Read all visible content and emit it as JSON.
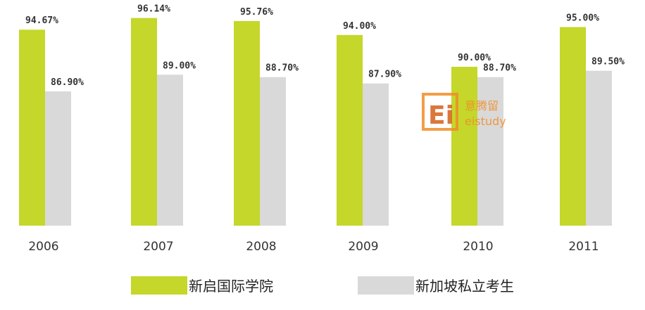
{
  "chart_data": {
    "type": "bar",
    "categories": [
      "2006",
      "2007",
      "2008",
      "2009",
      "2010",
      "2011"
    ],
    "series": [
      {
        "name": "新启国际学院",
        "values": [
          94.67,
          96.14,
          95.76,
          94.0,
          90.0,
          95.0
        ],
        "labels": [
          "94.67%",
          "96.14%",
          "95.76%",
          "94.00%",
          "90.00%",
          "95.00%"
        ],
        "color": "#c4d72a"
      },
      {
        "name": "新加坡私立考生",
        "values": [
          86.9,
          89.0,
          88.7,
          87.9,
          88.7,
          89.5
        ],
        "labels": [
          "86.90%",
          "89.00%",
          "88.70%",
          "87.90%",
          "88.70%",
          "89.50%"
        ],
        "color": "#d9d9d9"
      }
    ],
    "grid": false,
    "legend": "bottom-center"
  },
  "watermark": {
    "logo_text": "Ei",
    "text_top": "意腾留",
    "text_bottom": "eistudy",
    "color": "#f28c28"
  }
}
